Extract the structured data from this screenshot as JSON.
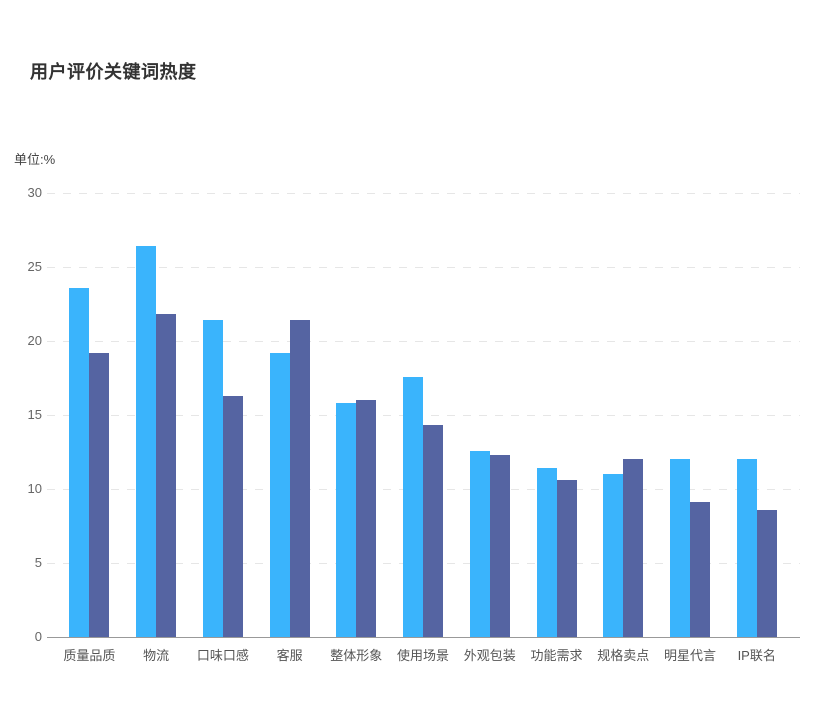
{
  "header": {
    "title": "用户评价关键词热度",
    "unit_label": "单位:%"
  },
  "chart_data": {
    "type": "bar",
    "title": "用户评价关键词热度",
    "unit": "%",
    "categories": [
      "质量品质",
      "物流",
      "口味口感",
      "客服",
      "整体形象",
      "使用场景",
      "外观包装",
      "功能需求",
      "规格卖点",
      "明星代言",
      "IP联名"
    ],
    "series": [
      {
        "name": "light-blue-series",
        "color": "#3ab4fc",
        "values": [
          23.6,
          26.4,
          21.4,
          19.2,
          15.8,
          17.6,
          12.6,
          11.4,
          11.0,
          12.0,
          12.0
        ]
      },
      {
        "name": "dark-blue-series",
        "color": "#5564a2",
        "values": [
          19.2,
          21.8,
          16.3,
          21.4,
          16.0,
          14.3,
          12.3,
          10.6,
          12.0,
          9.1,
          8.6
        ]
      }
    ],
    "xlabel": "",
    "ylabel": "单位:%",
    "ylim": [
      0,
      30
    ],
    "yticks": [
      0,
      5,
      10,
      15,
      20,
      25,
      30
    ],
    "grid": true,
    "grid_style": "dashed",
    "legend": "none",
    "colors": {
      "title_text": "#333333",
      "axis_text": "#666666",
      "category_text": "#555555",
      "axis_line": "#999999",
      "grid_line": "#e6e6e6",
      "background": "#ffffff"
    }
  }
}
